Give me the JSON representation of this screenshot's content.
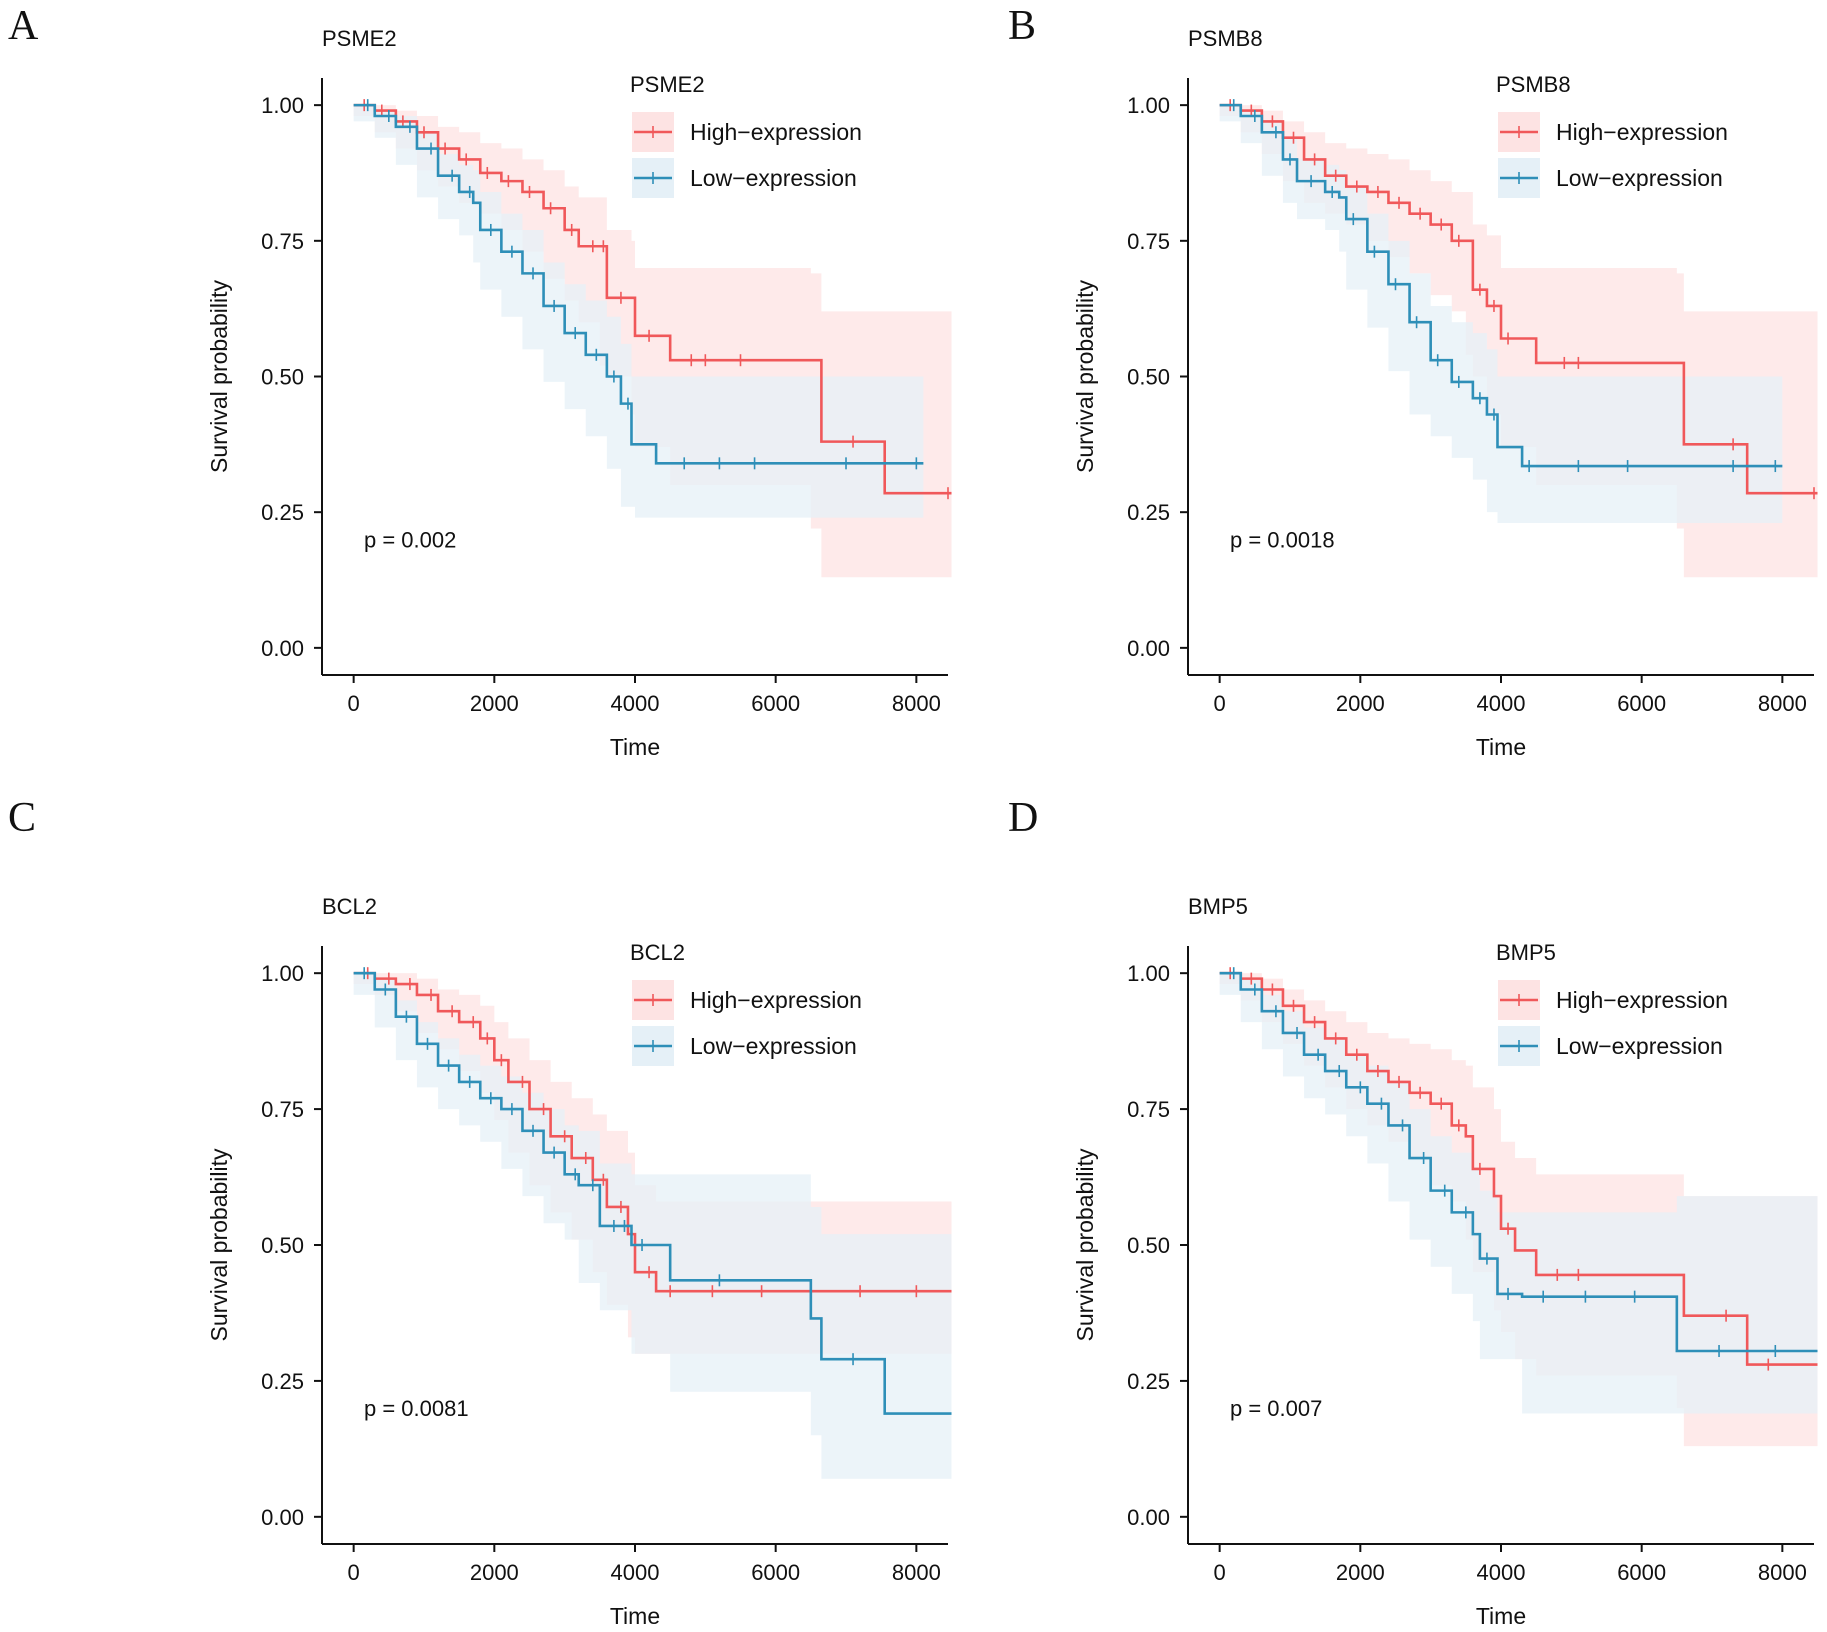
{
  "figure": {
    "colors": {
      "high": "#f0585a",
      "low": "#2e8fb8",
      "high_band": "#fde3e3",
      "low_band": "#e5f0f7"
    }
  },
  "chart_data": [
    {
      "type": "line",
      "panel_label": "A",
      "title": "PSME2",
      "legend_title": "PSME2",
      "xlabel": "Time",
      "ylabel": "Survival probability",
      "xlim": [
        -450,
        8450
      ],
      "ylim": [
        -0.05,
        1.05
      ],
      "x_ticks": [
        "0",
        "2000",
        "4000",
        "6000",
        "8000"
      ],
      "y_ticks": [
        "0.00",
        "0.25",
        "0.50",
        "0.75",
        "1.00"
      ],
      "pvalue_text": "p = 0.002",
      "series": [
        {
          "name": "High−expression",
          "x": [
            0,
            300,
            600,
            900,
            1200,
            1500,
            1800,
            2100,
            2400,
            2700,
            3000,
            3200,
            3500,
            3600,
            3950,
            4000,
            4500,
            6500,
            6650,
            7550,
            8500
          ],
          "y": [
            1.0,
            0.99,
            0.97,
            0.95,
            0.92,
            0.9,
            0.875,
            0.86,
            0.84,
            0.81,
            0.77,
            0.74,
            0.74,
            0.645,
            0.645,
            0.575,
            0.53,
            0.53,
            0.38,
            0.285,
            0.285
          ],
          "lower": [
            1.0,
            0.98,
            0.95,
            0.92,
            0.88,
            0.85,
            0.82,
            0.8,
            0.77,
            0.73,
            0.68,
            0.64,
            0.6,
            0.52,
            0.5,
            0.43,
            0.37,
            0.3,
            0.22,
            0.13,
            0.13
          ],
          "upper": [
            1.0,
            1.0,
            0.99,
            0.98,
            0.96,
            0.95,
            0.93,
            0.92,
            0.9,
            0.88,
            0.85,
            0.83,
            0.83,
            0.77,
            0.75,
            0.7,
            0.7,
            0.69,
            0.62,
            0.62,
            0.62
          ],
          "censor_x": [
            150,
            400,
            700,
            1000,
            1300,
            1600,
            1900,
            2200,
            2500,
            2800,
            3100,
            3400,
            3550,
            3800,
            4200,
            4800,
            5000,
            5500,
            7100,
            8450
          ]
        },
        {
          "name": "Low−expression",
          "x": [
            0,
            300,
            600,
            900,
            1200,
            1500,
            1700,
            1800,
            2100,
            2400,
            2700,
            3000,
            3300,
            3600,
            3800,
            3950,
            4000,
            4300,
            8100
          ],
          "y": [
            1.0,
            0.98,
            0.96,
            0.92,
            0.87,
            0.84,
            0.82,
            0.77,
            0.73,
            0.69,
            0.63,
            0.58,
            0.54,
            0.5,
            0.45,
            0.375,
            0.375,
            0.34,
            0.34
          ],
          "lower": [
            1.0,
            0.97,
            0.94,
            0.89,
            0.83,
            0.79,
            0.76,
            0.71,
            0.66,
            0.61,
            0.55,
            0.49,
            0.44,
            0.39,
            0.33,
            0.26,
            0.26,
            0.24,
            0.24
          ],
          "upper": [
            1.0,
            0.99,
            0.98,
            0.95,
            0.91,
            0.89,
            0.88,
            0.84,
            0.8,
            0.77,
            0.71,
            0.67,
            0.64,
            0.61,
            0.56,
            0.5,
            0.5,
            0.5,
            0.5
          ],
          "censor_x": [
            200,
            500,
            800,
            1100,
            1400,
            1650,
            1950,
            2250,
            2550,
            2850,
            3150,
            3450,
            3700,
            3900,
            4700,
            5200,
            5700,
            7000,
            8000
          ]
        }
      ]
    },
    {
      "type": "line",
      "panel_label": "B",
      "title": "PSMB8",
      "legend_title": "PSMB8",
      "xlabel": "Time",
      "ylabel": "Survival probability",
      "xlim": [
        -450,
        8450
      ],
      "ylim": [
        -0.05,
        1.05
      ],
      "x_ticks": [
        "0",
        "2000",
        "4000",
        "6000",
        "8000"
      ],
      "y_ticks": [
        "0.00",
        "0.25",
        "0.50",
        "0.75",
        "1.00"
      ],
      "pvalue_text": "p = 0.0018",
      "series": [
        {
          "name": "High−expression",
          "x": [
            0,
            300,
            600,
            900,
            1200,
            1500,
            1800,
            2100,
            2400,
            2700,
            3000,
            3300,
            3500,
            3600,
            3800,
            4000,
            4500,
            6500,
            6600,
            7500,
            8500
          ],
          "y": [
            1.0,
            0.99,
            0.97,
            0.94,
            0.9,
            0.87,
            0.85,
            0.84,
            0.82,
            0.8,
            0.78,
            0.75,
            0.75,
            0.66,
            0.63,
            0.57,
            0.525,
            0.525,
            0.375,
            0.285,
            0.285
          ],
          "lower": [
            1.0,
            0.98,
            0.95,
            0.91,
            0.86,
            0.82,
            0.8,
            0.78,
            0.75,
            0.72,
            0.69,
            0.65,
            0.62,
            0.54,
            0.5,
            0.43,
            0.37,
            0.3,
            0.22,
            0.13,
            0.13
          ],
          "upper": [
            1.0,
            1.0,
            0.99,
            0.97,
            0.95,
            0.93,
            0.92,
            0.91,
            0.9,
            0.88,
            0.86,
            0.84,
            0.84,
            0.78,
            0.76,
            0.7,
            0.7,
            0.69,
            0.62,
            0.62,
            0.62
          ],
          "censor_x": [
            150,
            450,
            750,
            1050,
            1350,
            1650,
            1950,
            2250,
            2550,
            2850,
            3150,
            3400,
            3700,
            3900,
            4100,
            4900,
            5100,
            7300,
            8450
          ]
        },
        {
          "name": "Low−expression",
          "x": [
            0,
            300,
            600,
            900,
            1100,
            1500,
            1700,
            1800,
            2100,
            2400,
            2700,
            3000,
            3300,
            3600,
            3800,
            3950,
            4300,
            8000
          ],
          "y": [
            1.0,
            0.98,
            0.95,
            0.9,
            0.86,
            0.84,
            0.83,
            0.79,
            0.73,
            0.67,
            0.6,
            0.53,
            0.49,
            0.46,
            0.43,
            0.37,
            0.335,
            0.335
          ],
          "lower": [
            1.0,
            0.97,
            0.93,
            0.87,
            0.82,
            0.79,
            0.77,
            0.73,
            0.66,
            0.59,
            0.51,
            0.43,
            0.39,
            0.35,
            0.31,
            0.25,
            0.23,
            0.23
          ],
          "upper": [
            1.0,
            0.99,
            0.97,
            0.94,
            0.9,
            0.89,
            0.88,
            0.85,
            0.8,
            0.75,
            0.69,
            0.63,
            0.6,
            0.58,
            0.55,
            0.5,
            0.5,
            0.5
          ],
          "censor_x": [
            200,
            500,
            800,
            1000,
            1300,
            1600,
            1900,
            2200,
            2500,
            2800,
            3100,
            3400,
            3700,
            3900,
            4400,
            5100,
            5800,
            7300,
            7900
          ]
        }
      ]
    },
    {
      "type": "line",
      "panel_label": "C",
      "title": "BCL2",
      "legend_title": "BCL2",
      "xlabel": "Time",
      "ylabel": "Survival probability",
      "xlim": [
        -450,
        8450
      ],
      "ylim": [
        -0.05,
        1.05
      ],
      "x_ticks": [
        "0",
        "2000",
        "4000",
        "6000",
        "8000"
      ],
      "y_ticks": [
        "0.00",
        "0.25",
        "0.50",
        "0.75",
        "1.00"
      ],
      "pvalue_text": "p = 0.0081",
      "series": [
        {
          "name": "High−expression",
          "x": [
            0,
            300,
            600,
            900,
            1200,
            1500,
            1800,
            2000,
            2200,
            2500,
            2800,
            3100,
            3400,
            3600,
            3900,
            4000,
            4300,
            8500
          ],
          "y": [
            1.0,
            0.99,
            0.98,
            0.96,
            0.93,
            0.91,
            0.88,
            0.84,
            0.8,
            0.75,
            0.7,
            0.66,
            0.62,
            0.57,
            0.52,
            0.45,
            0.415,
            0.415
          ],
          "lower": [
            1.0,
            0.98,
            0.96,
            0.93,
            0.89,
            0.86,
            0.82,
            0.78,
            0.73,
            0.67,
            0.61,
            0.56,
            0.51,
            0.45,
            0.39,
            0.33,
            0.3,
            0.3
          ],
          "upper": [
            1.0,
            1.0,
            1.0,
            0.99,
            0.97,
            0.96,
            0.94,
            0.91,
            0.88,
            0.84,
            0.8,
            0.77,
            0.74,
            0.71,
            0.67,
            0.61,
            0.58,
            0.58
          ],
          "censor_x": [
            200,
            500,
            800,
            1100,
            1400,
            1700,
            1900,
            2100,
            2400,
            2700,
            3000,
            3300,
            3550,
            3800,
            4200,
            4500,
            5100,
            5800,
            6500,
            7200,
            8000
          ]
        },
        {
          "name": "Low−expression",
          "x": [
            0,
            300,
            600,
            900,
            1200,
            1500,
            1800,
            2100,
            2400,
            2700,
            3000,
            3200,
            3500,
            3950,
            4500,
            6500,
            6650,
            7550,
            8500
          ],
          "y": [
            1.0,
            0.97,
            0.92,
            0.87,
            0.83,
            0.8,
            0.77,
            0.75,
            0.71,
            0.67,
            0.63,
            0.61,
            0.535,
            0.5,
            0.435,
            0.365,
            0.29,
            0.19,
            0.19
          ],
          "lower": [
            1.0,
            0.96,
            0.9,
            0.84,
            0.79,
            0.75,
            0.72,
            0.69,
            0.64,
            0.59,
            0.54,
            0.51,
            0.43,
            0.38,
            0.3,
            0.23,
            0.15,
            0.07,
            0.07
          ],
          "upper": [
            1.0,
            0.99,
            0.95,
            0.91,
            0.88,
            0.85,
            0.83,
            0.81,
            0.78,
            0.75,
            0.72,
            0.71,
            0.65,
            0.63,
            0.63,
            0.57,
            0.52,
            0.52,
            0.52
          ],
          "censor_x": [
            150,
            450,
            750,
            1050,
            1350,
            1650,
            1950,
            2250,
            2550,
            2850,
            3150,
            3400,
            3700,
            3850,
            4100,
            5200,
            7100
          ]
        }
      ]
    },
    {
      "type": "line",
      "panel_label": "D",
      "title": "BMP5",
      "legend_title": "BMP5",
      "xlabel": "Time",
      "ylabel": "Survival probability",
      "xlim": [
        -450,
        8450
      ],
      "ylim": [
        -0.05,
        1.05
      ],
      "x_ticks": [
        "0",
        "2000",
        "4000",
        "6000",
        "8000"
      ],
      "y_ticks": [
        "0.00",
        "0.25",
        "0.50",
        "0.75",
        "1.00"
      ],
      "pvalue_text": "p = 0.007",
      "series": [
        {
          "name": "High−expression",
          "x": [
            0,
            300,
            600,
            900,
            1200,
            1500,
            1800,
            2100,
            2400,
            2700,
            3000,
            3300,
            3500,
            3600,
            3900,
            4000,
            4200,
            4500,
            6500,
            6600,
            7500,
            8500
          ],
          "y": [
            1.0,
            0.99,
            0.97,
            0.94,
            0.91,
            0.88,
            0.85,
            0.82,
            0.8,
            0.78,
            0.76,
            0.72,
            0.7,
            0.64,
            0.59,
            0.53,
            0.49,
            0.445,
            0.445,
            0.37,
            0.28,
            0.28
          ],
          "lower": [
            1.0,
            0.98,
            0.95,
            0.91,
            0.87,
            0.83,
            0.79,
            0.75,
            0.72,
            0.69,
            0.66,
            0.61,
            0.58,
            0.51,
            0.45,
            0.38,
            0.34,
            0.29,
            0.26,
            0.2,
            0.13,
            0.13
          ],
          "upper": [
            1.0,
            1.0,
            0.99,
            0.97,
            0.95,
            0.93,
            0.91,
            0.89,
            0.88,
            0.87,
            0.86,
            0.84,
            0.83,
            0.79,
            0.75,
            0.69,
            0.66,
            0.63,
            0.63,
            0.59,
            0.59,
            0.59
          ],
          "censor_x": [
            150,
            450,
            750,
            1050,
            1350,
            1650,
            1950,
            2250,
            2550,
            2850,
            3150,
            3400,
            3700,
            4100,
            4800,
            5100,
            7200,
            7800
          ]
        },
        {
          "name": "Low−expression",
          "x": [
            0,
            300,
            600,
            900,
            1200,
            1500,
            1800,
            2100,
            2400,
            2700,
            3000,
            3300,
            3600,
            3700,
            3950,
            4300,
            6500,
            8500
          ],
          "y": [
            1.0,
            0.97,
            0.93,
            0.89,
            0.85,
            0.82,
            0.79,
            0.76,
            0.72,
            0.66,
            0.6,
            0.56,
            0.52,
            0.475,
            0.41,
            0.405,
            0.305,
            0.305
          ],
          "lower": [
            1.0,
            0.96,
            0.91,
            0.86,
            0.81,
            0.77,
            0.74,
            0.7,
            0.65,
            0.58,
            0.51,
            0.46,
            0.41,
            0.36,
            0.29,
            0.29,
            0.19,
            0.19
          ],
          "upper": [
            1.0,
            0.99,
            0.96,
            0.93,
            0.9,
            0.88,
            0.85,
            0.83,
            0.8,
            0.75,
            0.7,
            0.67,
            0.64,
            0.6,
            0.56,
            0.56,
            0.59,
            0.59
          ],
          "censor_x": [
            200,
            500,
            800,
            1100,
            1400,
            1700,
            2000,
            2300,
            2600,
            2900,
            3200,
            3500,
            3800,
            4100,
            4600,
            5200,
            5900,
            7100,
            7900
          ]
        }
      ]
    }
  ]
}
